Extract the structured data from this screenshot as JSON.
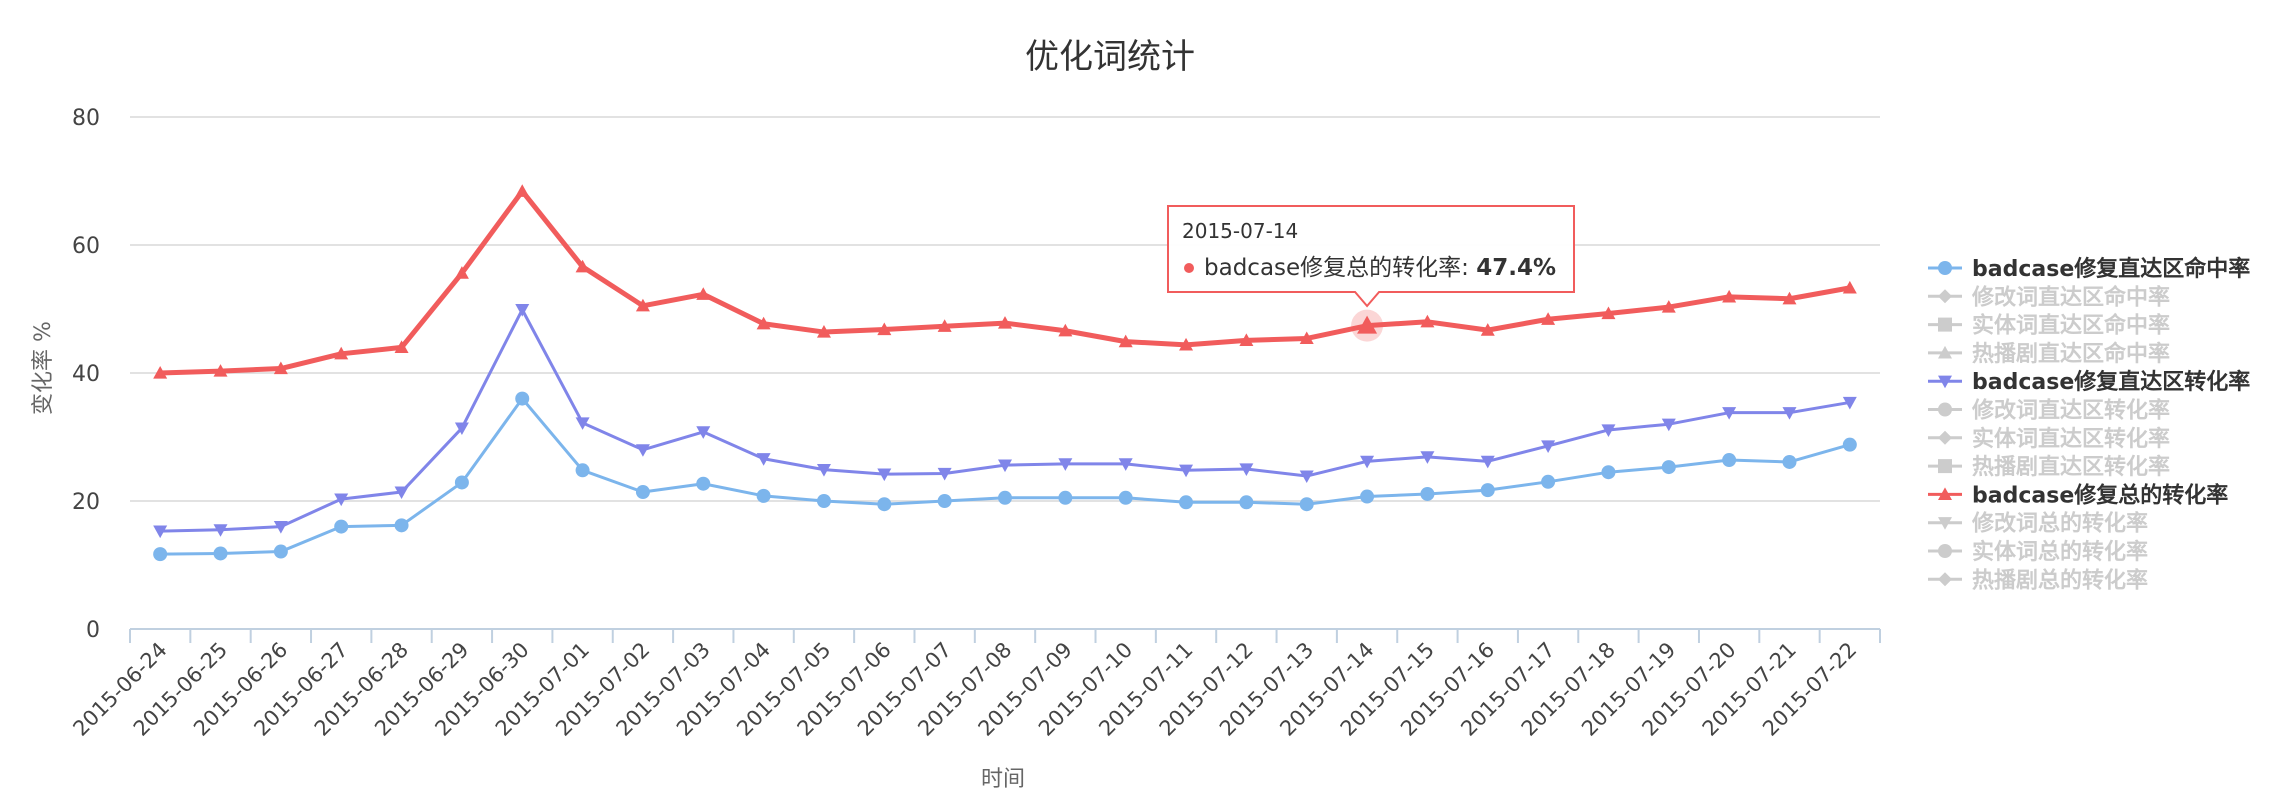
{
  "colors": {
    "series1": "#7cb5ec",
    "series2": "#8085e9",
    "series3": "#f15c5c",
    "legend_hidden": "#cccccc",
    "gridline": "#d8d8d8",
    "axis": "#c0d0e0",
    "text": "#444444",
    "title": "#333333"
  },
  "chart_data": {
    "type": "line",
    "title": "优化词统计",
    "xlabel": "时间",
    "ylabel": "变化率 %",
    "ylim": [
      0,
      80
    ],
    "yticks": [
      0,
      20,
      40,
      60,
      80
    ],
    "grid": true,
    "legend_position": "right",
    "categories": [
      "2015-06-24",
      "2015-06-25",
      "2015-06-26",
      "2015-06-27",
      "2015-06-28",
      "2015-06-29",
      "2015-06-30",
      "2015-07-01",
      "2015-07-02",
      "2015-07-03",
      "2015-07-04",
      "2015-07-05",
      "2015-07-06",
      "2015-07-07",
      "2015-07-08",
      "2015-07-09",
      "2015-07-10",
      "2015-07-11",
      "2015-07-12",
      "2015-07-13",
      "2015-07-14",
      "2015-07-15",
      "2015-07-16",
      "2015-07-17",
      "2015-07-18",
      "2015-07-19",
      "2015-07-20",
      "2015-07-21",
      "2015-07-22"
    ],
    "series": [
      {
        "name": "badcase修复直达区命中率",
        "visible": true,
        "marker": "circle",
        "color": "#7cb5ec",
        "values": [
          11.7,
          11.8,
          12.1,
          16,
          16.2,
          22.9,
          36,
          24.8,
          21.4,
          22.7,
          20.8,
          20,
          19.5,
          20,
          20.5,
          20.5,
          20.5,
          19.8,
          19.8,
          19.5,
          20.7,
          21.1,
          21.7,
          23,
          24.5,
          25.3,
          26.4,
          26.1,
          28.8
        ]
      },
      {
        "name": "修改词直达区命中率",
        "visible": false,
        "marker": "diamond"
      },
      {
        "name": "实体词直达区命中率",
        "visible": false,
        "marker": "square"
      },
      {
        "name": "热播剧直达区命中率",
        "visible": false,
        "marker": "triangle"
      },
      {
        "name": "badcase修复直达区转化率",
        "visible": true,
        "marker": "triangle-down",
        "color": "#8085e9",
        "values": [
          15.3,
          15.5,
          16,
          20.3,
          21.4,
          31.4,
          49.9,
          32.2,
          28,
          30.8,
          26.6,
          24.9,
          24.2,
          24.3,
          25.6,
          25.8,
          25.8,
          24.8,
          25,
          23.9,
          26.2,
          26.9,
          26.2,
          28.6,
          31.1,
          32,
          33.8,
          33.8,
          35.4
        ]
      },
      {
        "name": "修改词直达区转化率",
        "visible": false,
        "marker": "circle"
      },
      {
        "name": "实体词直达区转化率",
        "visible": false,
        "marker": "diamond"
      },
      {
        "name": "热播剧直达区转化率",
        "visible": false,
        "marker": "square"
      },
      {
        "name": "badcase修复总的转化率",
        "visible": true,
        "marker": "triangle",
        "color": "#f15c5c",
        "values": [
          40,
          40.3,
          40.7,
          43,
          44,
          55.6,
          68.4,
          56.6,
          50.5,
          52.3,
          47.7,
          46.4,
          46.8,
          47.3,
          47.8,
          46.6,
          44.9,
          44.4,
          45.1,
          45.4,
          47.4,
          48,
          46.7,
          48.4,
          49.3,
          50.3,
          51.9,
          51.6,
          53.3
        ]
      },
      {
        "name": "修改词总的转化率",
        "visible": false,
        "marker": "triangle-down"
      },
      {
        "name": "实体词总的转化率",
        "visible": false,
        "marker": "circle"
      },
      {
        "name": "热播剧总的转化率",
        "visible": false,
        "marker": "diamond"
      }
    ],
    "tooltip": {
      "series_index": 8,
      "category": "2015-07-14",
      "series_label": "badcase修复总的转化率: ",
      "value_text": "47.4%"
    }
  }
}
